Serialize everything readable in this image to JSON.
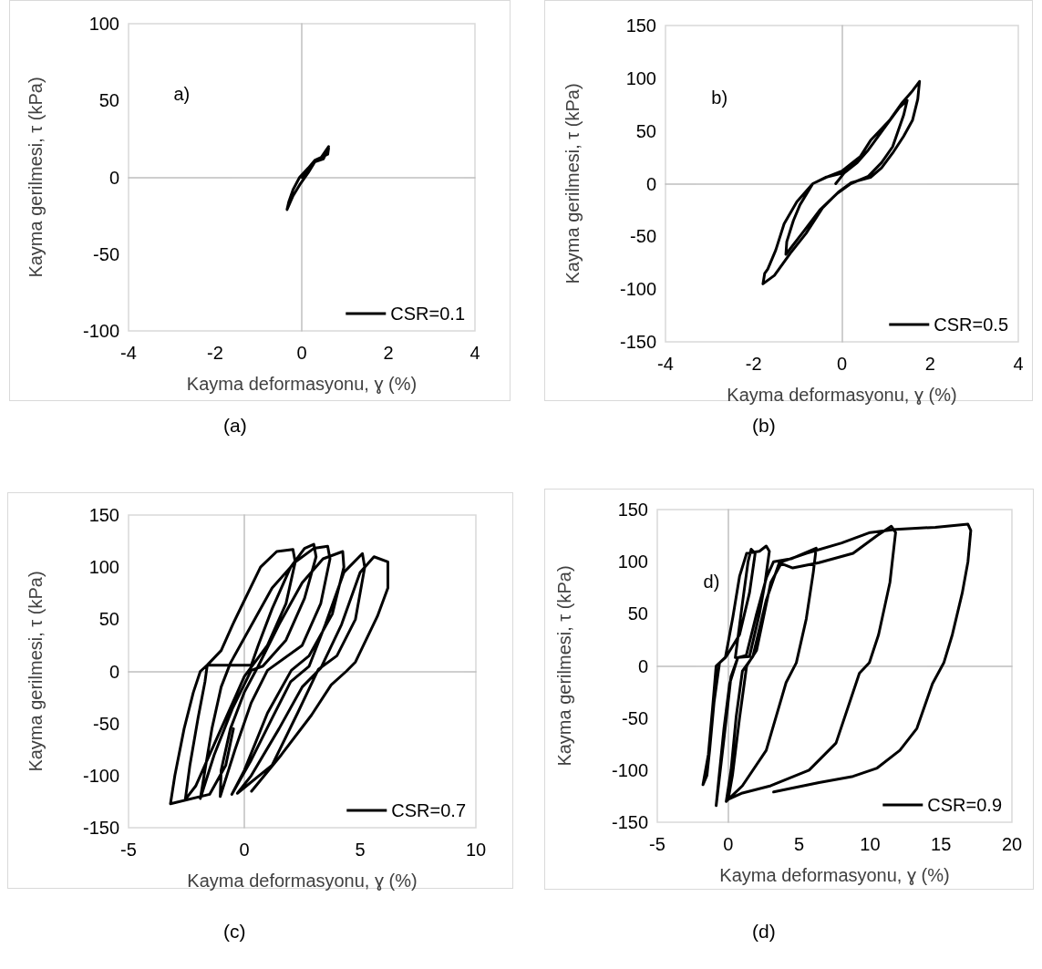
{
  "chart_data": [
    {
      "type": "line",
      "title": "(a)",
      "xlabel": "Kayma deformasyonu, ɣ (%)",
      "ylabel": "Kayma gerilmesi, τ (kPa)",
      "annotations": [
        "a)"
      ],
      "xlim": [
        -4,
        4
      ],
      "xticks": [
        -4,
        -2,
        0,
        2,
        4
      ],
      "ylim": [
        -100,
        100
      ],
      "yticks": [
        -100,
        -50,
        0,
        50,
        100
      ],
      "legend": "bottom right",
      "series": [
        {
          "name": "CSR=0.1",
          "color": "#000000",
          "x": [
            0,
            0.15,
            0.3,
            0.5,
            0.62,
            0.6,
            0.45,
            0.3,
            0.15,
            -0.05,
            -0.2,
            -0.34,
            -0.3,
            -0.2,
            -0.05,
            0.15,
            0.3,
            0.45,
            0.62
          ],
          "values": [
            0,
            5,
            10,
            12,
            19,
            15,
            13,
            10,
            3,
            -5,
            -12,
            -21,
            -16,
            -8,
            0,
            6,
            11,
            13,
            20
          ]
        }
      ]
    },
    {
      "type": "line",
      "title": "(b)",
      "xlabel": "Kayma deformasyonu, ɣ (%)",
      "ylabel": "Kayma gerilmesi, τ (kPa)",
      "annotations": [
        "b)"
      ],
      "xlim": [
        -4,
        4
      ],
      "xticks": [
        -4,
        -2,
        0,
        2,
        4
      ],
      "ylim": [
        -150,
        150
      ],
      "yticks": [
        -150,
        -100,
        -50,
        0,
        50,
        100,
        150
      ],
      "legend": "bottom right",
      "series": [
        {
          "name": "CSR=0.5",
          "color": "#000000",
          "x": [
            -0.14,
            0.05,
            0.35,
            0.6,
            1.0,
            1.3,
            1.48,
            1.4,
            1.15,
            0.9,
            0.6,
            0.2,
            -0.1,
            -0.5,
            -0.9,
            -1.27,
            -1.25,
            -1.1,
            -0.95,
            -0.66,
            -0.37,
            0,
            0.36,
            0.65,
            1.08,
            1.37,
            1.6,
            1.76,
            1.72,
            1.6,
            1.4,
            1.15,
            0.9,
            0.65,
            0.21,
            -0.08,
            -0.44,
            -0.81,
            -1.17,
            -1.53,
            -1.79,
            -1.75,
            -1.68,
            -1.5,
            -1.31,
            -1.02,
            -0.66,
            -0.3,
            0,
            0.3,
            0.55
          ],
          "values": [
            0,
            10,
            20,
            32,
            55,
            72,
            79,
            65,
            35,
            20,
            7,
            0,
            -9,
            -25,
            -47,
            -67,
            -55,
            -35,
            -20,
            0,
            6,
            10,
            22,
            41,
            60,
            77,
            88,
            97,
            80,
            60,
            45,
            29,
            15,
            6,
            1,
            -8,
            -23,
            -47,
            -66,
            -87,
            -95,
            -85,
            -81,
            -63,
            -38,
            -17,
            0,
            7,
            12,
            22,
            30
          ]
        }
      ]
    },
    {
      "type": "line",
      "title": "(c)",
      "xlabel": "Kayma deformasyonu, ɣ (%)",
      "ylabel": "Kayma gerilmesi, τ (kPa)",
      "xlim": [
        -5,
        10
      ],
      "xticks": [
        -5,
        0,
        5,
        10
      ],
      "ylim": [
        -150,
        150
      ],
      "yticks": [
        -150,
        -100,
        -50,
        0,
        50,
        100,
        150
      ],
      "legend": "bottom right",
      "series": [
        {
          "name": "CSR=0.7",
          "color": "#000000",
          "x": [
            -0.47,
            -0.8,
            -1.5,
            -3.19,
            -3.0,
            -2.6,
            -2.2,
            -1.9,
            -1.6,
            -1.0,
            -0.5,
            0,
            0.7,
            1.4,
            2.1,
            2.2,
            1.8,
            1.0,
            0,
            -0.8,
            -1.5,
            -2.1,
            -2.55,
            -2.35,
            -2.0,
            -1.7,
            -1.6,
            0.3,
            0.6,
            1.2,
            2.0,
            2.6,
            3.0,
            3.1,
            2.6,
            1.8,
            0.8,
            0.3,
            -0.5,
            -1.3,
            -1.9,
            -1.7,
            -1.4,
            -1.0,
            -0.6,
            0.2,
            1.2,
            2.2,
            3.0,
            3.6,
            3.7,
            3.3,
            2.5,
            1.0,
            0.3,
            -0.4,
            -1.04,
            -1.0,
            -0.6,
            0,
            0.6,
            1.5,
            2.5,
            3.4,
            4.25,
            4.3,
            3.8,
            2.8,
            2.03,
            1.0,
            0,
            -0.54,
            0.3,
            1.2,
            2.0,
            2.8,
            3.5,
            4.3,
            5.1,
            5.2,
            4.8,
            4.0,
            3.2,
            2.3,
            1.2,
            -0.3,
            0.3,
            1.5,
            2.5,
            3.3,
            4.2,
            5.0,
            5.6,
            6.2,
            6.2,
            5.75,
            4.8,
            4.4,
            3.75,
            2.9,
            1.6,
            0.31
          ],
          "values": [
            -55,
            -90,
            -118,
            -127,
            -100,
            -55,
            -20,
            0,
            6,
            20,
            45,
            68,
            100,
            115,
            117,
            105,
            65,
            25,
            -5,
            -45,
            -80,
            -110,
            -123,
            -90,
            -45,
            -10,
            6,
            6,
            25,
            60,
            100,
            118,
            122,
            110,
            70,
            30,
            5,
            1,
            -35,
            -80,
            -122,
            -95,
            -55,
            -15,
            8,
            40,
            80,
            105,
            118,
            120,
            108,
            65,
            25,
            1,
            -30,
            -75,
            -120,
            -95,
            -55,
            -20,
            5,
            45,
            85,
            108,
            115,
            100,
            55,
            15,
            1,
            -40,
            -95,
            -118,
            -85,
            -45,
            -10,
            5,
            45,
            95,
            113,
            100,
            50,
            15,
            2,
            -40,
            -90,
            -117,
            -100,
            -55,
            -15,
            3,
            45,
            95,
            110,
            105,
            80,
            53,
            9,
            0,
            -13,
            -42,
            -80,
            -115
          ]
        }
      ]
    },
    {
      "type": "line",
      "title": "(d)",
      "xlabel": "Kayma deformasyonu, ɣ (%)",
      "ylabel": "Kayma gerilmesi, τ (kPa)",
      "annotations": [
        "d)"
      ],
      "xlim": [
        -5,
        20
      ],
      "xticks": [
        -5,
        0,
        5,
        10,
        15,
        20
      ],
      "ylim": [
        -150,
        150
      ],
      "yticks": [
        -150,
        -100,
        -50,
        0,
        50,
        100,
        150
      ],
      "legend": "bottom right",
      "series": [
        {
          "name": "CSR=0.9",
          "color": "#000000",
          "x": [
            0.5,
            1.0,
            1.4,
            1.62,
            1.9,
            1.5,
            0.8,
            -0.14,
            -0.61,
            -0.85,
            -1.1,
            -1.4,
            -1.78,
            -1.5,
            -1.31,
            -1.0,
            -0.61,
            -0.2,
            0.33,
            0.8,
            1.3,
            2.2,
            2.68,
            2.9,
            2.6,
            2.2,
            1.5,
            0.68,
            0.2,
            -0.3,
            -0.85,
            -0.6,
            -0.3,
            0.1,
            0.68,
            1.27,
            2.0,
            2.7,
            3.2,
            4.5,
            6.2,
            6.0,
            5.5,
            4.8,
            4.08,
            2.68,
            1.0,
            -0.14,
            0.2,
            0.56,
            1.0,
            1.74,
            2.68,
            3.6,
            4.55,
            6.4,
            8.8,
            10.5,
            11.5,
            11.8,
            11.4,
            10.6,
            9.95,
            9.25,
            7.6,
            5.7,
            3.0,
            1.0,
            0,
            0.3,
            0.8,
            1.3,
            2.0,
            3.0,
            3.8,
            5.5,
            8.0,
            10,
            11.8,
            14.6,
            16.9,
            17.1,
            16.9,
            16.5,
            15.8,
            15.2,
            14.4,
            13.3,
            12.1,
            10.5,
            8.8,
            6.4,
            3.2
          ],
          "values": [
            8,
            60,
            100,
            112,
            108,
            70,
            30,
            9,
            3,
            0,
            -40,
            -85,
            -114,
            -105,
            -81,
            -35,
            3,
            8,
            47,
            86,
            108,
            110,
            115,
            110,
            80,
            50,
            9,
            8,
            -10,
            -70,
            -134,
            -100,
            -60,
            -17,
            8,
            10,
            50,
            85,
            100,
            103,
            113,
            90,
            45,
            3,
            -16,
            -81,
            -115,
            -130,
            -100,
            -49,
            -5,
            9,
            63,
            99,
            94,
            99,
            108,
            125,
            134,
            128,
            80,
            30,
            3,
            -7,
            -74,
            -100,
            -115,
            -122,
            -128,
            -105,
            -50,
            0,
            15,
            80,
            100,
            108,
            118,
            128,
            131,
            133,
            136,
            130,
            100,
            70,
            30,
            3,
            -17,
            -60,
            -81,
            -98,
            -106,
            -112,
            -121
          ]
        }
      ]
    }
  ]
}
